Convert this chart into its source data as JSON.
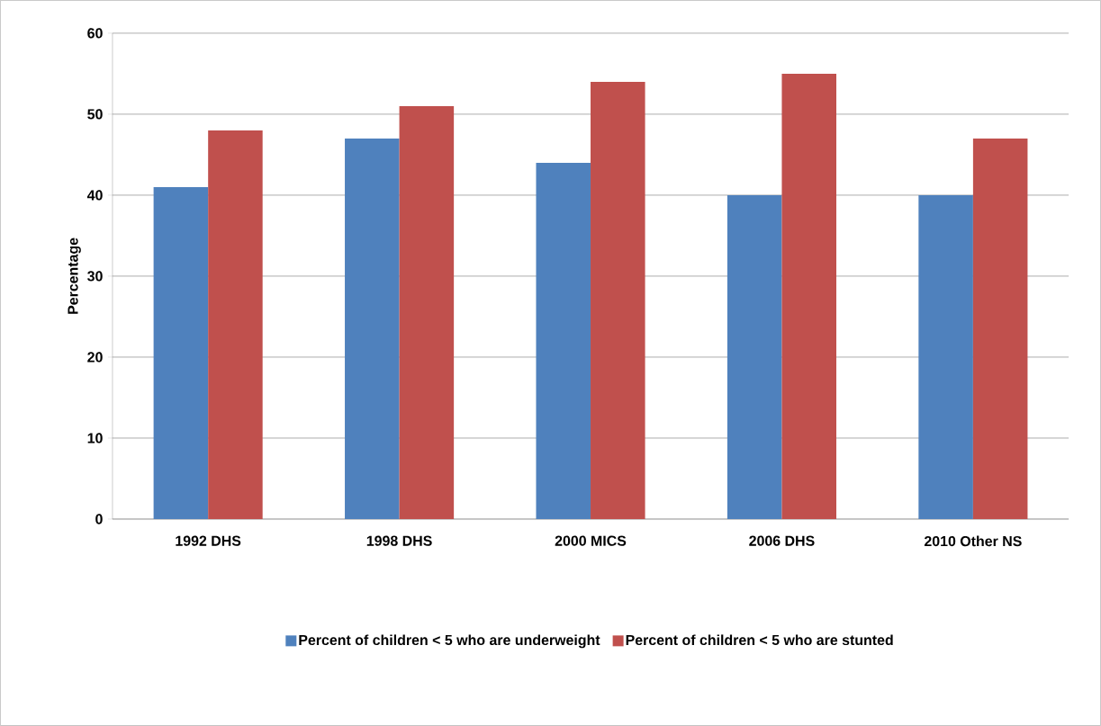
{
  "chart_data": {
    "type": "bar",
    "ylabel": "Percentage",
    "categories": [
      "1992 DHS",
      "1998 DHS",
      "2000 MICS",
      "2006 DHS",
      "2010 Other NS"
    ],
    "series": [
      {
        "name": "Percent of children < 5 who are underweight",
        "color": "#4f81bd",
        "values": [
          41,
          47,
          44,
          40,
          40
        ]
      },
      {
        "name": "Percent of children < 5 who are stunted",
        "color": "#c0504d",
        "values": [
          48,
          51,
          54,
          55,
          47
        ]
      }
    ],
    "ylim": [
      0,
      60
    ],
    "yticks": [
      0,
      10,
      20,
      30,
      40,
      50,
      60
    ],
    "grid": "y",
    "legend": "bottom"
  }
}
